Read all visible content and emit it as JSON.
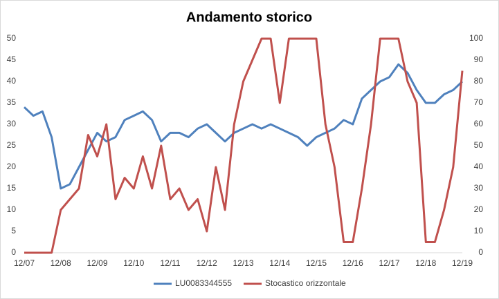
{
  "chart_data": {
    "type": "line",
    "title": "Andamento storico",
    "categories": [
      "12/07",
      null,
      null,
      null,
      "12/08",
      null,
      null,
      null,
      "12/09",
      null,
      null,
      null,
      "12/10",
      null,
      null,
      null,
      "12/11",
      null,
      null,
      null,
      "12/12",
      null,
      null,
      null,
      "12/13",
      null,
      null,
      null,
      "12/14",
      null,
      null,
      null,
      "12/15",
      null,
      null,
      null,
      "12/16",
      null,
      null,
      null,
      "12/17",
      null,
      null,
      null,
      "12/18",
      null,
      null,
      null,
      "12/19"
    ],
    "series": [
      {
        "name": "LU0083344555",
        "color": "#4f81bd",
        "axis": "y",
        "values": [
          34,
          32,
          33,
          27,
          15,
          16,
          20,
          24,
          28,
          26,
          27,
          31,
          32,
          33,
          31,
          26,
          28,
          28,
          27,
          29,
          30,
          28,
          26,
          28,
          29,
          30,
          29,
          30,
          29,
          28,
          27,
          25,
          27,
          28,
          29,
          31,
          30,
          36,
          38,
          40,
          41,
          44,
          42,
          38,
          35,
          35,
          37,
          38,
          40
        ]
      },
      {
        "name": "Stocastico orizzontale",
        "color": "#c0504d",
        "axis": "y2",
        "values": [
          0,
          0,
          0,
          0,
          20,
          25,
          30,
          55,
          45,
          60,
          25,
          35,
          30,
          45,
          30,
          50,
          25,
          30,
          20,
          25,
          10,
          40,
          20,
          60,
          80,
          90,
          100,
          100,
          70,
          100,
          100,
          100,
          100,
          60,
          40,
          5,
          5,
          30,
          60,
          100,
          100,
          100,
          80,
          70,
          5,
          5,
          20,
          40,
          85
        ]
      }
    ],
    "ylim": [
      0,
      50
    ],
    "yticks": [
      0,
      5,
      10,
      15,
      20,
      25,
      30,
      35,
      40,
      45,
      50
    ],
    "y2lim": [
      0,
      100
    ],
    "y2ticks": [
      0,
      10,
      20,
      30,
      40,
      50,
      60,
      70,
      80,
      90,
      100
    ],
    "legend": "bottom",
    "grid": false
  }
}
